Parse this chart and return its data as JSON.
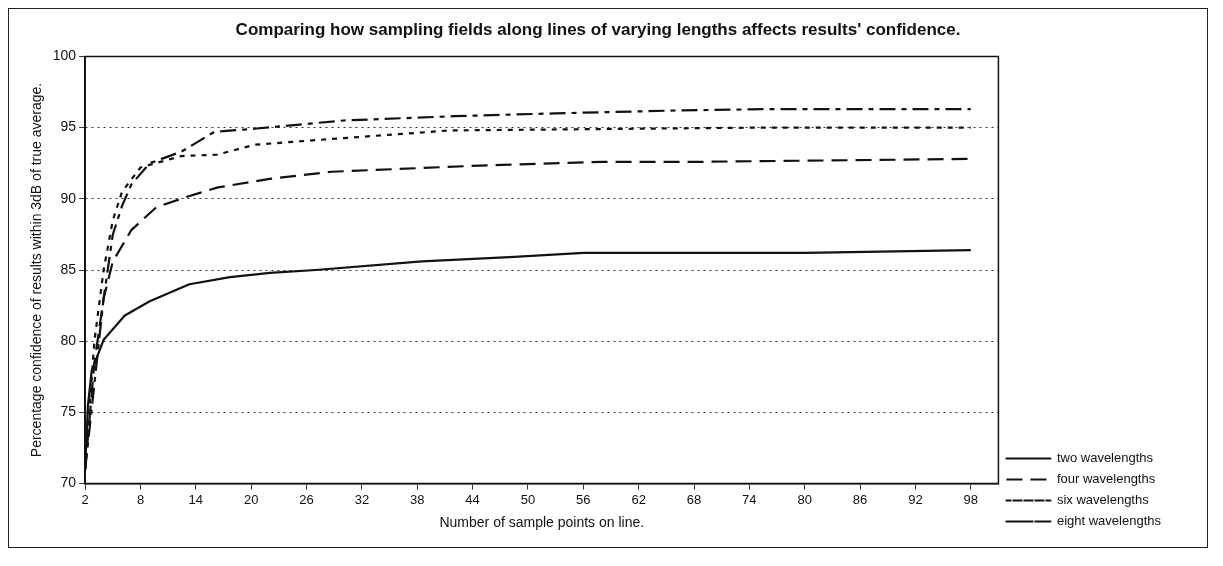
{
  "chart_data": {
    "type": "line",
    "title": "Comparing how sampling fields along lines of varying lengths affects results' confidence.",
    "xlabel": "Number of sample points on line.",
    "ylabel": "Percentage confidence of results within 3dB of true average.",
    "series": [
      {
        "name": "two wavelengths",
        "color": "#111111",
        "line_style": "solid",
        "x": [
          2,
          2.3,
          2.7,
          4,
          6.3,
          9,
          13.3,
          17.7,
          22,
          27,
          38.5,
          48,
          56,
          69,
          80,
          98
        ],
        "values": [
          71.1,
          75.5,
          77.9,
          80.1,
          81.8,
          82.8,
          84,
          84.5,
          84.8,
          85,
          85.6,
          85.9,
          86.2,
          86.2,
          86.2,
          86.4
        ]
      },
      {
        "name": "four wavelengths",
        "color": "#111111",
        "line_style": "dashed",
        "x": [
          2,
          3,
          4,
          5,
          7,
          9.7,
          13.3,
          16.4,
          22,
          28.7,
          43.5,
          58,
          69,
          98
        ],
        "values": [
          71,
          78.5,
          83,
          85.6,
          87.8,
          89.4,
          90.2,
          90.8,
          91.4,
          91.9,
          92.3,
          92.6,
          92.6,
          92.8
        ]
      },
      {
        "name": "six wavelengths",
        "color": "#111111",
        "line_style": "dotted",
        "x": [
          2,
          3,
          4,
          5,
          6,
          8,
          12.4,
          16.3,
          20.4,
          28.7,
          41.5,
          58,
          75,
          98
        ],
        "values": [
          71,
          80,
          85,
          88.5,
          90.5,
          92.2,
          93,
          93.1,
          93.8,
          94.2,
          94.8,
          94.9,
          95,
          95
        ]
      },
      {
        "name": "eight wavelengths",
        "color": "#111111",
        "line_style": "dashdot",
        "x": [
          2,
          3,
          4,
          5,
          6,
          7,
          9,
          12.4,
          16,
          20,
          30,
          42,
          53,
          66,
          76,
          98
        ],
        "values": [
          71,
          77,
          83,
          87.5,
          89.5,
          91,
          92.5,
          93.3,
          94.7,
          94.9,
          95.5,
          95.8,
          96,
          96.2,
          96.3,
          96.3
        ]
      }
    ],
    "xlim": [
      2,
      101
    ],
    "xticks": [
      2,
      8,
      14,
      20,
      26,
      32,
      38,
      44,
      50,
      56,
      62,
      68,
      74,
      80,
      86,
      92,
      98
    ],
    "ylim": [
      70,
      100
    ],
    "yticks": [
      70,
      75,
      80,
      85,
      90,
      95,
      100
    ],
    "grid": "y",
    "legend": "right",
    "marker": "none"
  }
}
